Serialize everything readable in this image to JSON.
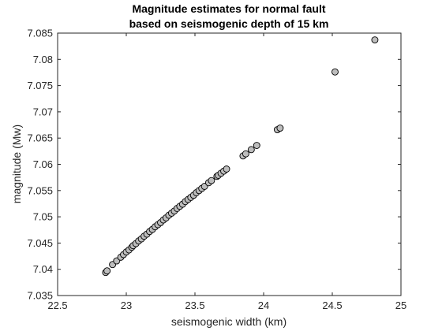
{
  "chart_data": {
    "type": "scatter",
    "title": [
      "Magnitude estimates for normal fault",
      "based on seismogenic depth of 15 km"
    ],
    "xlabel": "seismogenic width (km)",
    "ylabel": "magnitude (Mw)",
    "xlim": [
      22.5,
      25
    ],
    "ylim": [
      7.035,
      7.085
    ],
    "xticks": [
      22.5,
      23,
      23.5,
      24,
      24.5,
      25
    ],
    "yticks": [
      7.035,
      7.04,
      7.045,
      7.05,
      7.055,
      7.06,
      7.065,
      7.07,
      7.075,
      7.08,
      7.085
    ],
    "xtick_labels": [
      "22.5",
      "23",
      "23.5",
      "24",
      "24.5",
      "25"
    ],
    "ytick_labels": [
      "7.035",
      "7.04",
      "7.045",
      "7.05",
      "7.055",
      "7.06",
      "7.065",
      "7.07",
      "7.075",
      "7.08",
      "7.085"
    ],
    "grid": false,
    "legend": "none",
    "marker_fill": "#bdbdbd",
    "marker_edge": "#000000",
    "x": [
      22.85,
      22.86,
      22.9,
      22.93,
      22.96,
      22.98,
      23.0,
      23.02,
      23.04,
      23.05,
      23.07,
      23.09,
      23.11,
      23.13,
      23.15,
      23.17,
      23.19,
      23.21,
      23.23,
      23.25,
      23.27,
      23.29,
      23.31,
      23.33,
      23.35,
      23.37,
      23.39,
      23.41,
      23.43,
      23.45,
      23.47,
      23.49,
      23.51,
      23.53,
      23.55,
      23.57,
      23.6,
      23.62,
      23.66,
      23.67,
      23.69,
      23.71,
      23.73,
      23.85,
      23.87,
      23.91,
      23.95,
      24.1,
      24.12,
      24.52,
      24.81
    ],
    "y": [
      7.0394,
      7.0397,
      7.0409,
      7.0416,
      7.0423,
      7.0428,
      7.0433,
      7.0437,
      7.0442,
      7.0445,
      7.0449,
      7.0454,
      7.0458,
      7.0463,
      7.0467,
      7.0472,
      7.0476,
      7.0481,
      7.0485,
      7.0489,
      7.0494,
      7.0498,
      7.0503,
      7.0507,
      7.0511,
      7.0516,
      7.052,
      7.0524,
      7.0529,
      7.0533,
      7.0537,
      7.0541,
      7.0546,
      7.055,
      7.0554,
      7.0558,
      7.0565,
      7.0569,
      7.0577,
      7.0579,
      7.0583,
      7.0587,
      7.0591,
      7.0616,
      7.062,
      7.0628,
      7.0636,
      7.0666,
      7.0669,
      7.0776,
      7.0837
    ]
  }
}
